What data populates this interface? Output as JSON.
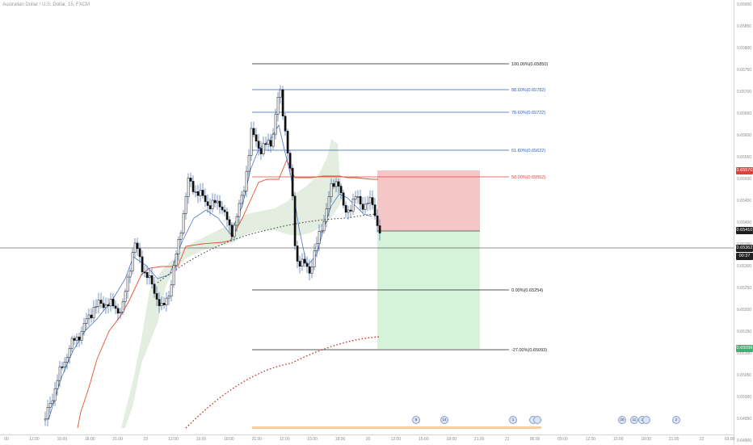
{
  "symbol_header": "Australian Dollar / U.S. Dollar, 15, FXCM",
  "price_axis": {
    "ticks": [
      "0.65900",
      "0.65850",
      "0.65800",
      "0.65750",
      "0.65700",
      "0.65650",
      "0.65600",
      "0.65550",
      "0.65500",
      "0.65450",
      "0.65400",
      "0.65350",
      "0.65300",
      "0.65250",
      "0.65200",
      "0.65150",
      "0.65100",
      "0.65050",
      "0.65000",
      "0.64950",
      "0.64900"
    ],
    "badges": [
      {
        "label": "0.65570",
        "color": "#e0403a"
      },
      {
        "label": "0.65410",
        "color": "#1f1f1f"
      },
      {
        "label": "0.65362",
        "color": "#1f1f1f"
      },
      {
        "label": "00:37",
        "color": "#1f1f1f"
      },
      {
        "label": "0.65096",
        "color": "#3bb273"
      }
    ]
  },
  "time_axis": {
    "ticks": [
      "00",
      "12:00",
      "15:00",
      "18:00",
      "21:00",
      "19",
      "12:00",
      "15:00",
      "18:00",
      "21:00",
      "12:00",
      "15:00",
      "18:00",
      "20",
      "12:00",
      "15:00",
      "18:00",
      "21:00",
      "21",
      "06:00",
      "09:00",
      "12:00",
      "15:00",
      "18:00",
      "21:00",
      "22",
      "03:00"
    ]
  },
  "fib_levels": [
    {
      "label": "100.00%(0.65850)",
      "color": "#222222"
    },
    {
      "label": "88.60%(0.65782)",
      "color": "#2f5fb3"
    },
    {
      "label": "78.60%(0.65722)",
      "color": "#2f5fb3"
    },
    {
      "label": "61.80%(0.65622)",
      "color": "#2f5fb3"
    },
    {
      "label": "50.00%(0.65552)",
      "color": "#e0403a"
    },
    {
      "label": "0.00%(0.65254)",
      "color": "#222222"
    },
    {
      "label": "-27.00%(0.65093)",
      "color": "#222222"
    }
  ],
  "position": {
    "type": "short",
    "stop_color": "#f2b8b8",
    "target_color": "#c9f0cf"
  },
  "event_flags": [
    "6",
    "14",
    "1",
    "",
    "",
    "20",
    "11",
    "2",
    "",
    "2"
  ],
  "colors": {
    "candle": "#111111",
    "wick": "#1f4fa3",
    "kijun": "#e0532e",
    "tenkan": "#4a78c8",
    "cloud": "#e3ede0",
    "dotted": "#c0392b"
  }
}
